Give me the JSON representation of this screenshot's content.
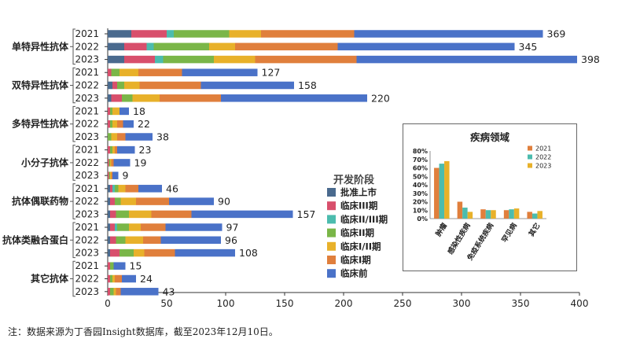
{
  "chart_data": [
    {
      "type": "bar",
      "orientation": "horizontal",
      "stacked": true,
      "groups": [
        {
          "name": "单特异性抗体",
          "years": [
            {
              "year": "2021",
              "total": 369,
              "values": [
                20,
                30,
                6,
                47,
                27,
                79,
                160
              ]
            },
            {
              "year": "2022",
              "total": 345,
              "values": [
                14,
                19,
                6,
                47,
                22,
                87,
                150
              ]
            },
            {
              "year": "2023",
              "total": 398,
              "values": [
                14,
                26,
                7,
                43,
                35,
                86,
                187
              ]
            }
          ]
        },
        {
          "name": "双特异性抗体",
          "years": [
            {
              "year": "2021",
              "total": 127,
              "values": [
                0,
                3,
                0,
                7,
                16,
                37,
                64
              ]
            },
            {
              "year": "2022",
              "total": 158,
              "values": [
                4,
                4,
                0,
                6,
                13,
                52,
                79
              ]
            },
            {
              "year": "2023",
              "total": 220,
              "values": [
                3,
                9,
                0,
                9,
                23,
                52,
                124
              ]
            }
          ]
        },
        {
          "name": "多特异性抗体",
          "years": [
            {
              "year": "2021",
              "total": 18,
              "values": [
                0,
                2,
                0,
                2,
                6,
                0,
                8
              ]
            },
            {
              "year": "2022",
              "total": 22,
              "values": [
                0,
                2,
                0,
                2,
                4,
                5,
                9
              ]
            },
            {
              "year": "2023",
              "total": 38,
              "values": [
                0,
                0,
                0,
                3,
                5,
                7,
                23
              ]
            }
          ]
        },
        {
          "name": "小分子抗体",
          "years": [
            {
              "year": "2021",
              "total": 23,
              "values": [
                0,
                2,
                0,
                2,
                2,
                2,
                15
              ]
            },
            {
              "year": "2022",
              "total": 19,
              "values": [
                0,
                1,
                0,
                1,
                1,
                2,
                14
              ]
            },
            {
              "year": "2023",
              "total": 9,
              "values": [
                0,
                1,
                0,
                1,
                1,
                1,
                5
              ]
            }
          ]
        },
        {
          "name": "抗体偶联药物",
          "years": [
            {
              "year": "2021",
              "total": 46,
              "values": [
                2,
                2,
                2,
                3,
                6,
                11,
                20
              ]
            },
            {
              "year": "2022",
              "total": 90,
              "values": [
                2,
                4,
                0,
                5,
                13,
                28,
                38
              ]
            },
            {
              "year": "2023",
              "total": 157,
              "values": [
                2,
                5,
                0,
                11,
                19,
                34,
                86
              ]
            }
          ]
        },
        {
          "name": "抗体类融合蛋白",
          "years": [
            {
              "year": "2021",
              "total": 97,
              "values": [
                2,
                4,
                2,
                10,
                10,
                21,
                48
              ]
            },
            {
              "year": "2022",
              "total": 96,
              "values": [
                2,
                5,
                0,
                8,
                15,
                15,
                51
              ]
            },
            {
              "year": "2023",
              "total": 108,
              "values": [
                2,
                8,
                0,
                12,
                9,
                26,
                51
              ]
            }
          ]
        },
        {
          "name": "其它抗体",
          "years": [
            {
              "year": "2021",
              "total": 15,
              "values": [
                0,
                2,
                0,
                3,
                0,
                0,
                10
              ]
            },
            {
              "year": "2022",
              "total": 24,
              "values": [
                0,
                2,
                0,
                2,
                2,
                6,
                12
              ]
            },
            {
              "year": "2023",
              "total": 43,
              "values": [
                0,
                2,
                0,
                3,
                2,
                4,
                32
              ]
            }
          ]
        }
      ],
      "series": [
        {
          "name": "批准上市",
          "color": "#4a6a8e"
        },
        {
          "name": "临床III期",
          "color": "#d84f6c"
        },
        {
          "name": "临床II/III期",
          "color": "#4cbcae"
        },
        {
          "name": "临床II期",
          "color": "#7ab648"
        },
        {
          "name": "临床I/II期",
          "color": "#e8b12a"
        },
        {
          "name": "临床I期",
          "color": "#e07f3c"
        },
        {
          "name": "临床前",
          "color": "#4a72c8"
        }
      ],
      "legend_title": "开发阶段",
      "legend_position": "right",
      "xlim": [
        0,
        400
      ],
      "xticks": [
        0,
        50,
        100,
        150,
        200,
        250,
        300,
        350,
        400
      ]
    },
    {
      "type": "bar",
      "title": "疾病领域",
      "categories": [
        "肿瘤",
        "感染性疾病",
        "免疫系统疾病",
        "罕见病",
        "其它"
      ],
      "series": [
        {
          "name": "2021",
          "color": "#e07f3c",
          "values": [
            60,
            20,
            11,
            10,
            8
          ]
        },
        {
          "name": "2022",
          "color": "#4cbcae",
          "values": [
            65,
            13,
            10,
            11,
            6
          ]
        },
        {
          "name": "2023",
          "color": "#e8b12a",
          "values": [
            68,
            8,
            10,
            12,
            9
          ]
        }
      ],
      "ylim": [
        0,
        80
      ],
      "yticks": [
        "0%",
        "10%",
        "20%",
        "30%",
        "40%",
        "50%",
        "60%",
        "70%",
        "80%"
      ],
      "legend_position": "right"
    }
  ],
  "footnote": "注：数据来源为丁香园Insight数据库，截至2023年12月10日。"
}
